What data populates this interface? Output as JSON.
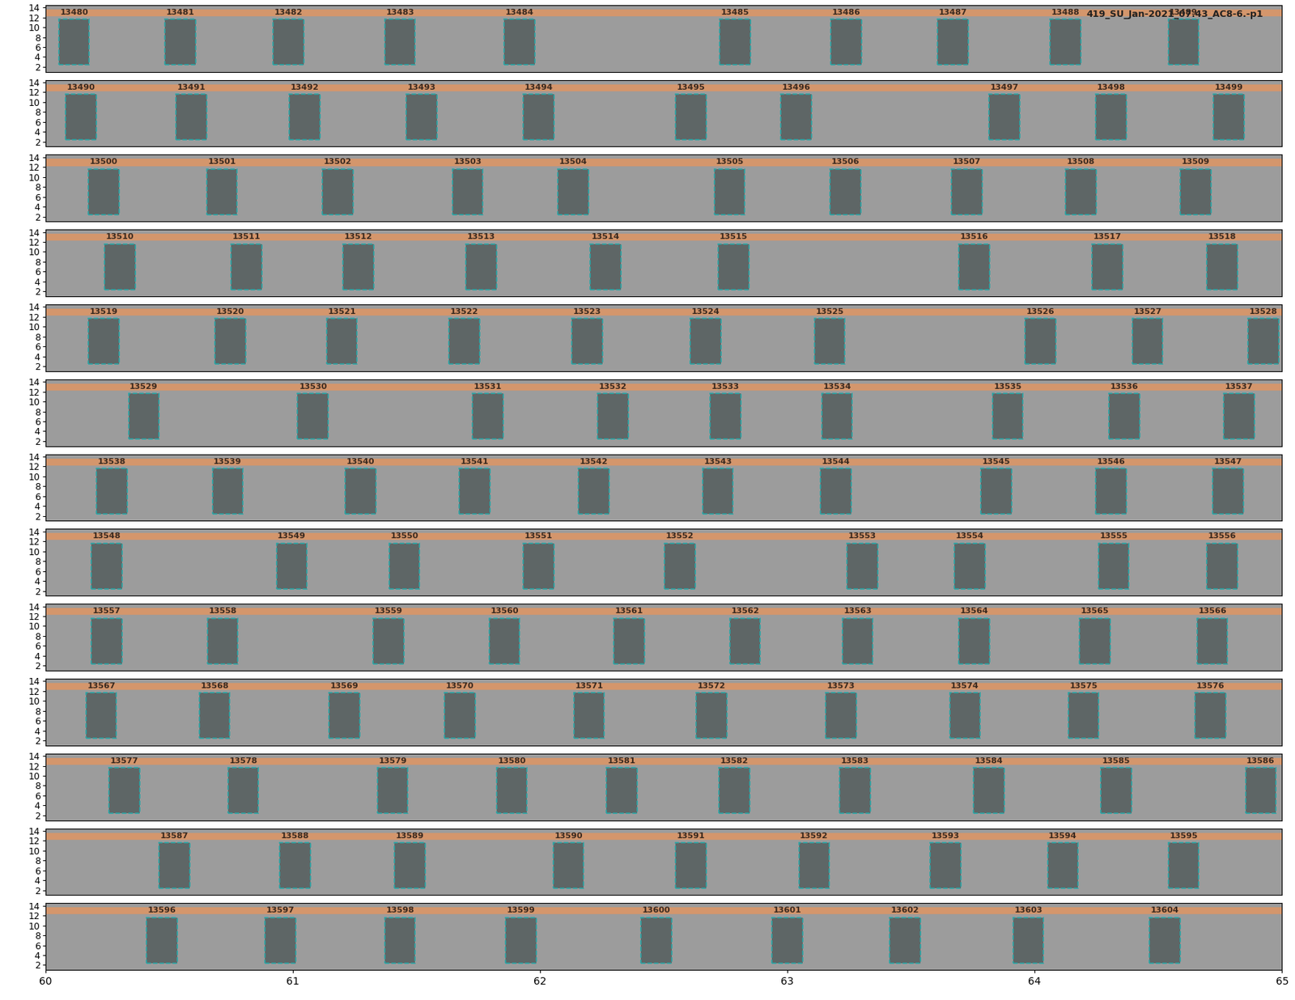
{
  "chart_data": {
    "type": "detection_spectrogram",
    "title": "419_SU_Jan-2021_07.43_AC8-6.-p1",
    "xlim": [
      60,
      65
    ],
    "xticks": [
      60,
      61,
      62,
      63,
      64,
      65
    ],
    "ylim": [
      1,
      14.5
    ],
    "yticks": [
      2,
      4,
      6,
      8,
      10,
      12,
      14
    ],
    "rows": [
      {
        "detections": [
          {
            "label": "13480",
            "x": 60.116
          },
          {
            "label": "13481",
            "x": 60.545
          },
          {
            "label": "13482",
            "x": 60.983
          },
          {
            "label": "13483",
            "x": 61.434
          },
          {
            "label": "13484",
            "x": 61.916
          },
          {
            "label": "13485",
            "x": 62.789
          },
          {
            "label": "13486",
            "x": 63.237
          },
          {
            "label": "13487",
            "x": 63.669
          },
          {
            "label": "13488",
            "x": 64.124
          },
          {
            "label": "13489",
            "x": 64.602
          }
        ]
      },
      {
        "detections": [
          {
            "label": "13490",
            "x": 60.143
          },
          {
            "label": "13491",
            "x": 60.591
          },
          {
            "label": "13492",
            "x": 61.049
          },
          {
            "label": "13493",
            "x": 61.521
          },
          {
            "label": "13494",
            "x": 61.995
          },
          {
            "label": "13495",
            "x": 62.61
          },
          {
            "label": "13496",
            "x": 63.035
          },
          {
            "label": "13497",
            "x": 63.878
          },
          {
            "label": "13498",
            "x": 64.309
          },
          {
            "label": "13499",
            "x": 64.784
          }
        ]
      },
      {
        "detections": [
          {
            "label": "13500",
            "x": 60.236
          },
          {
            "label": "13501",
            "x": 60.714
          },
          {
            "label": "13502",
            "x": 61.182
          },
          {
            "label": "13503",
            "x": 61.707
          },
          {
            "label": "13504",
            "x": 62.135
          },
          {
            "label": "13505",
            "x": 62.766
          },
          {
            "label": "13506",
            "x": 63.234
          },
          {
            "label": "13507",
            "x": 63.725
          },
          {
            "label": "13508",
            "x": 64.187
          },
          {
            "label": "13509",
            "x": 64.651
          }
        ]
      },
      {
        "detections": [
          {
            "label": "13510",
            "x": 60.302
          },
          {
            "label": "13511",
            "x": 60.813
          },
          {
            "label": "13512",
            "x": 61.265
          },
          {
            "label": "13513",
            "x": 61.763
          },
          {
            "label": "13514",
            "x": 62.264
          },
          {
            "label": "13515",
            "x": 62.782
          },
          {
            "label": "13516",
            "x": 63.755
          },
          {
            "label": "13517",
            "x": 64.293
          },
          {
            "label": "13518",
            "x": 64.758
          }
        ]
      },
      {
        "detections": [
          {
            "label": "13519",
            "x": 60.236
          },
          {
            "label": "13520",
            "x": 60.747
          },
          {
            "label": "13521",
            "x": 61.199
          },
          {
            "label": "13522",
            "x": 61.693
          },
          {
            "label": "13523",
            "x": 62.191
          },
          {
            "label": "13524",
            "x": 62.669
          },
          {
            "label": "13525",
            "x": 63.171
          },
          {
            "label": "13526",
            "x": 64.024
          },
          {
            "label": "13527",
            "x": 64.456
          },
          {
            "label": "13528",
            "x": 64.924
          }
        ]
      },
      {
        "detections": [
          {
            "label": "13529",
            "x": 60.398
          },
          {
            "label": "13530",
            "x": 61.082
          },
          {
            "label": "13531",
            "x": 61.79
          },
          {
            "label": "13532",
            "x": 62.294
          },
          {
            "label": "13533",
            "x": 62.749
          },
          {
            "label": "13534",
            "x": 63.201
          },
          {
            "label": "13535",
            "x": 63.891
          },
          {
            "label": "13536",
            "x": 64.363
          },
          {
            "label": "13537",
            "x": 64.827
          }
        ]
      },
      {
        "detections": [
          {
            "label": "13538",
            "x": 60.269
          },
          {
            "label": "13539",
            "x": 60.737
          },
          {
            "label": "13540",
            "x": 61.275
          },
          {
            "label": "13541",
            "x": 61.736
          },
          {
            "label": "13542",
            "x": 62.218
          },
          {
            "label": "13543",
            "x": 62.719
          },
          {
            "label": "13544",
            "x": 63.197
          },
          {
            "label": "13545",
            "x": 63.845
          },
          {
            "label": "13546",
            "x": 64.309
          },
          {
            "label": "13547",
            "x": 64.781
          }
        ]
      },
      {
        "detections": [
          {
            "label": "13548",
            "x": 60.249
          },
          {
            "label": "13549",
            "x": 60.996
          },
          {
            "label": "13550",
            "x": 61.451
          },
          {
            "label": "13551",
            "x": 61.995
          },
          {
            "label": "13552",
            "x": 62.566
          },
          {
            "label": "13553",
            "x": 63.303
          },
          {
            "label": "13554",
            "x": 63.738
          },
          {
            "label": "13555",
            "x": 64.319
          },
          {
            "label": "13556",
            "x": 64.758
          }
        ]
      },
      {
        "detections": [
          {
            "label": "13557",
            "x": 60.249
          },
          {
            "label": "13558",
            "x": 60.717
          },
          {
            "label": "13559",
            "x": 61.388
          },
          {
            "label": "13560",
            "x": 61.856
          },
          {
            "label": "13561",
            "x": 62.361
          },
          {
            "label": "13562",
            "x": 62.829
          },
          {
            "label": "13563",
            "x": 63.284
          },
          {
            "label": "13564",
            "x": 63.755
          },
          {
            "label": "13565",
            "x": 64.243
          },
          {
            "label": "13566",
            "x": 64.718
          }
        ]
      },
      {
        "detections": [
          {
            "label": "13567",
            "x": 60.226
          },
          {
            "label": "13568",
            "x": 60.684
          },
          {
            "label": "13569",
            "x": 61.209
          },
          {
            "label": "13570",
            "x": 61.677
          },
          {
            "label": "13571",
            "x": 62.198
          },
          {
            "label": "13572",
            "x": 62.693
          },
          {
            "label": "13573",
            "x": 63.217
          },
          {
            "label": "13574",
            "x": 63.718
          },
          {
            "label": "13575",
            "x": 64.197
          },
          {
            "label": "13576",
            "x": 64.711
          }
        ]
      },
      {
        "detections": [
          {
            "label": "13577",
            "x": 60.319
          },
          {
            "label": "13578",
            "x": 60.8
          },
          {
            "label": "13579",
            "x": 61.404
          },
          {
            "label": "13580",
            "x": 61.886
          },
          {
            "label": "13581",
            "x": 62.331
          },
          {
            "label": "13582",
            "x": 62.786
          },
          {
            "label": "13583",
            "x": 63.274
          },
          {
            "label": "13584",
            "x": 63.815
          },
          {
            "label": "13585",
            "x": 64.329
          },
          {
            "label": "13586",
            "x": 64.914
          }
        ]
      },
      {
        "detections": [
          {
            "label": "13587",
            "x": 60.521
          },
          {
            "label": "13588",
            "x": 61.009
          },
          {
            "label": "13589",
            "x": 61.474
          },
          {
            "label": "13590",
            "x": 62.115
          },
          {
            "label": "13591",
            "x": 62.61
          },
          {
            "label": "13592",
            "x": 63.108
          },
          {
            "label": "13593",
            "x": 63.639
          },
          {
            "label": "13594",
            "x": 64.114
          },
          {
            "label": "13595",
            "x": 64.602
          }
        ]
      },
      {
        "detections": [
          {
            "label": "13596",
            "x": 60.471
          },
          {
            "label": "13597",
            "x": 60.95
          },
          {
            "label": "13598",
            "x": 61.434
          },
          {
            "label": "13599",
            "x": 61.922
          },
          {
            "label": "13600",
            "x": 62.47
          },
          {
            "label": "13601",
            "x": 63.0
          },
          {
            "label": "13602",
            "x": 63.476
          },
          {
            "label": "13603",
            "x": 63.974
          },
          {
            "label": "13604",
            "x": 64.525
          }
        ]
      }
    ]
  }
}
